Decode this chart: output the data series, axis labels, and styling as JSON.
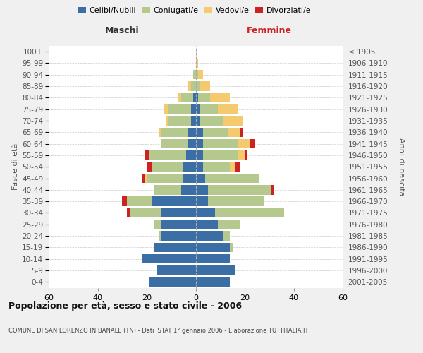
{
  "age_groups": [
    "0-4",
    "5-9",
    "10-14",
    "15-19",
    "20-24",
    "25-29",
    "30-34",
    "35-39",
    "40-44",
    "45-49",
    "50-54",
    "55-59",
    "60-64",
    "65-69",
    "70-74",
    "75-79",
    "80-84",
    "85-89",
    "90-94",
    "95-99",
    "100+"
  ],
  "birth_years": [
    "2001-2005",
    "1996-2000",
    "1991-1995",
    "1986-1990",
    "1981-1985",
    "1976-1980",
    "1971-1975",
    "1966-1970",
    "1961-1965",
    "1956-1960",
    "1951-1955",
    "1946-1950",
    "1941-1945",
    "1936-1940",
    "1931-1935",
    "1926-1930",
    "1921-1925",
    "1916-1920",
    "1911-1915",
    "1906-1910",
    "≤ 1905"
  ],
  "male_celibi": [
    19,
    16,
    22,
    17,
    14,
    14,
    14,
    18,
    6,
    5,
    5,
    4,
    3,
    3,
    2,
    2,
    1,
    0,
    0,
    0,
    0
  ],
  "male_coniugati": [
    0,
    0,
    0,
    0,
    1,
    3,
    13,
    10,
    11,
    15,
    13,
    15,
    11,
    11,
    9,
    9,
    5,
    2,
    1,
    0,
    0
  ],
  "male_vedovi": [
    0,
    0,
    0,
    0,
    0,
    0,
    0,
    0,
    0,
    1,
    0,
    0,
    0,
    1,
    1,
    2,
    1,
    1,
    0,
    0,
    0
  ],
  "male_divorziati": [
    0,
    0,
    0,
    0,
    0,
    0,
    1,
    2,
    0,
    1,
    2,
    2,
    0,
    0,
    0,
    0,
    0,
    0,
    0,
    0,
    0
  ],
  "female_nubili": [
    14,
    16,
    14,
    14,
    11,
    9,
    8,
    5,
    5,
    4,
    3,
    3,
    3,
    3,
    2,
    2,
    1,
    0,
    0,
    0,
    0
  ],
  "female_coniugate": [
    0,
    0,
    0,
    1,
    3,
    9,
    28,
    23,
    26,
    22,
    11,
    14,
    14,
    10,
    9,
    7,
    5,
    2,
    1,
    0,
    0
  ],
  "female_vedove": [
    0,
    0,
    0,
    0,
    0,
    0,
    0,
    0,
    0,
    0,
    2,
    3,
    5,
    5,
    8,
    8,
    8,
    4,
    2,
    1,
    0
  ],
  "female_divorziate": [
    0,
    0,
    0,
    0,
    0,
    0,
    0,
    0,
    1,
    0,
    2,
    1,
    2,
    1,
    0,
    0,
    0,
    0,
    0,
    0,
    0
  ],
  "color_celibi": "#3a6ea5",
  "color_coniugati": "#b5c98e",
  "color_vedovi": "#f5c96e",
  "color_divorziati": "#cc2222",
  "legend_labels": [
    "Celibi/Nubili",
    "Coniugati/e",
    "Vedovi/e",
    "Divorziati/e"
  ],
  "title": "Popolazione per età, sesso e stato civile - 2006",
  "subtitle": "COMUNE DI SAN LORENZO IN BANALE (TN) - Dati ISTAT 1° gennaio 2006 - Elaborazione TUTTITALIA.IT",
  "label_maschi": "Maschi",
  "label_femmine": "Femmine",
  "label_fasce": "Fasce di età",
  "label_anni": "Anni di nascita",
  "xlim": 60,
  "bg_color": "#f0f0f0",
  "plot_bg": "#ffffff"
}
